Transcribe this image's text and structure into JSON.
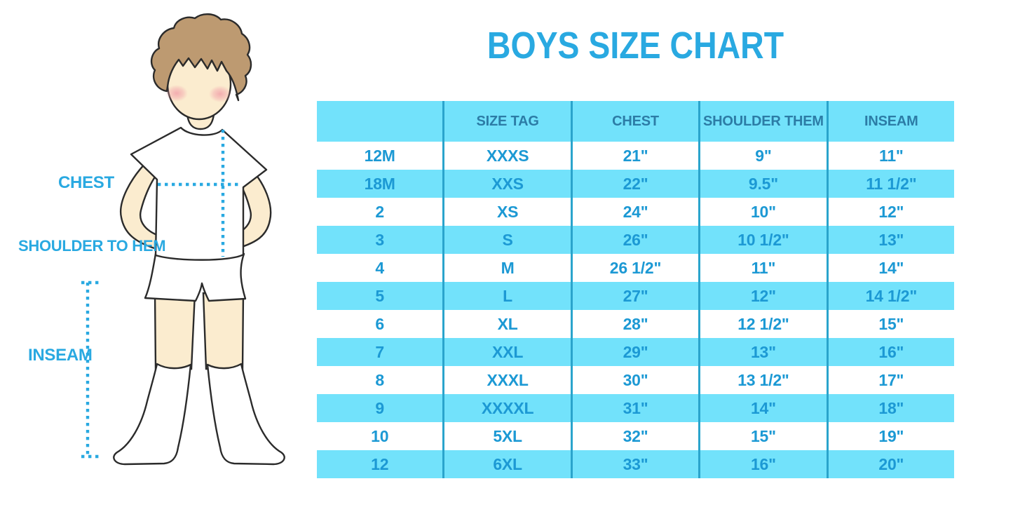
{
  "title": "BOYS SIZE CHART",
  "figure": {
    "labels": {
      "chest": "CHEST",
      "shoulder_to_hem": "SHOULDER TO HEM",
      "inseam": "INSEAM"
    }
  },
  "table": {
    "headers": [
      "",
      "SIZE TAG",
      "CHEST",
      "SHOULDER THEM",
      "INSEAM"
    ],
    "rows": [
      [
        "12M",
        "XXXS",
        "21\"",
        "9\"",
        "11\""
      ],
      [
        "18M",
        "XXS",
        "22\"",
        "9.5\"",
        "11 1/2\""
      ],
      [
        "2",
        "XS",
        "24\"",
        "10\"",
        "12\""
      ],
      [
        "3",
        "S",
        "26\"",
        "10 1/2\"",
        "13\""
      ],
      [
        "4",
        "M",
        "26 1/2\"",
        "11\"",
        "14\""
      ],
      [
        "5",
        "L",
        "27\"",
        "12\"",
        "14 1/2\""
      ],
      [
        "6",
        "XL",
        "28\"",
        "12 1/2\"",
        "15\""
      ],
      [
        "7",
        "XXL",
        "29\"",
        "13\"",
        "16\""
      ],
      [
        "8",
        "XXXL",
        "30\"",
        "13 1/2\"",
        "17\""
      ],
      [
        "9",
        "XXXXL",
        "31\"",
        "14\"",
        "18\""
      ],
      [
        "10",
        "5XL",
        "32\"",
        "15\"",
        "19\""
      ],
      [
        "12",
        "6XL",
        "33\"",
        "16\"",
        "20\""
      ]
    ]
  },
  "colors": {
    "accent_blue": "#29a9e1",
    "band_cyan": "#72e2fb",
    "grid_line": "#2aa4cc",
    "header_text": "#2c7ca6",
    "cell_text": "#1c99d4",
    "skin": "#fbeccf",
    "hair": "#bd9a71",
    "outline": "#2b2b2b"
  }
}
